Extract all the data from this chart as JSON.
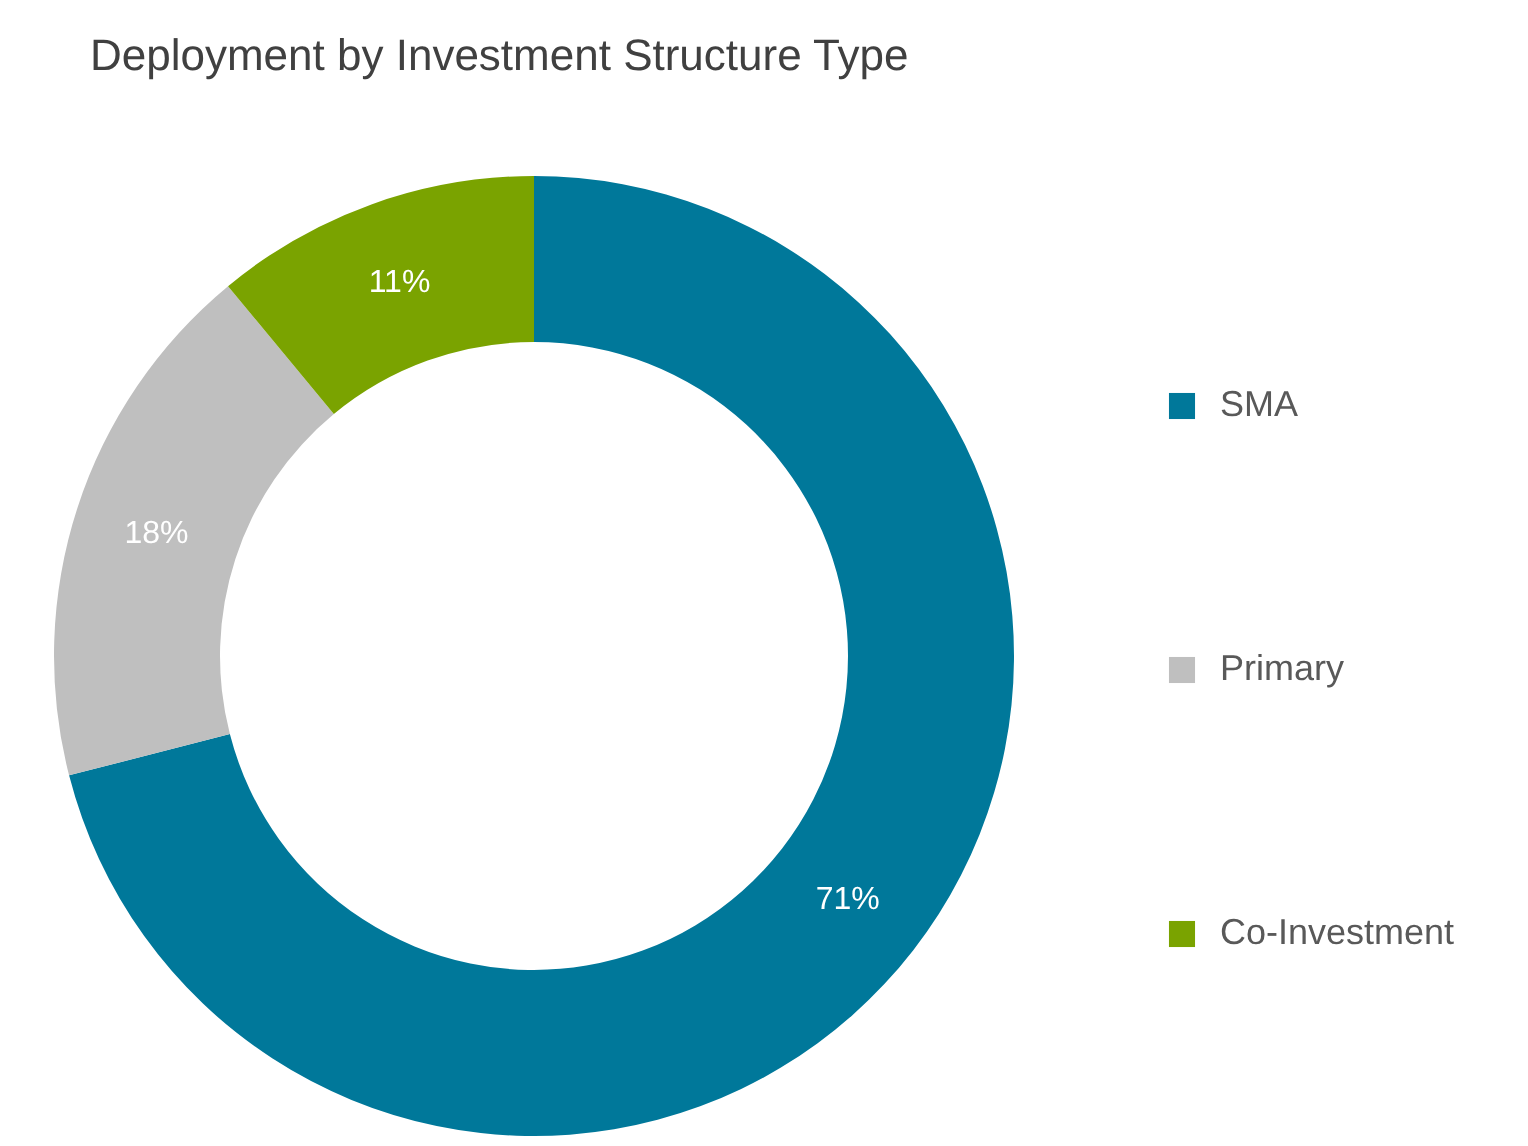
{
  "chart_data": {
    "type": "donut",
    "title": "Deployment by Investment Structure Type",
    "categories": [
      "SMA",
      "Primary",
      "Co-Investment"
    ],
    "values": [
      71,
      18,
      11
    ],
    "colors": [
      "#00789a",
      "#bfbfbf",
      "#7aa300"
    ],
    "value_labels": [
      "71%",
      "18%",
      "11%"
    ],
    "legend": "right"
  }
}
